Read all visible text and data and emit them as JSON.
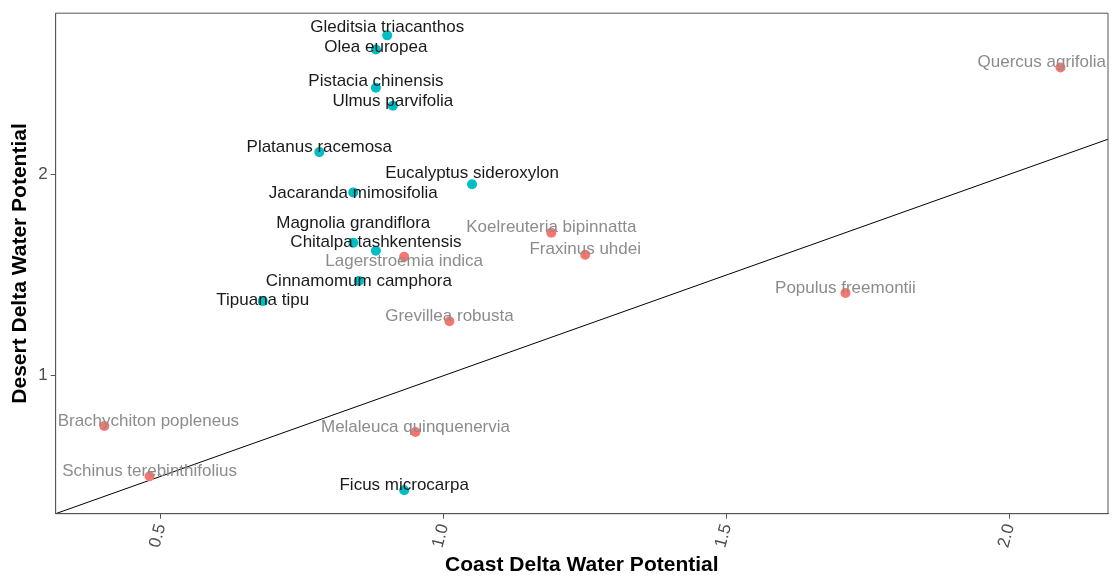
{
  "chart_data": {
    "type": "scatter",
    "xlabel": "Coast Delta Water Potential",
    "ylabel": "Desert Delta Water Potential",
    "xlim": [
      0.314,
      2.174
    ],
    "ylim": [
      0.314,
      2.8
    ],
    "xticks": [
      {
        "value": 0.5,
        "label": "0.5"
      },
      {
        "value": 1.0,
        "label": "1.0"
      },
      {
        "value": 1.5,
        "label": "1.5"
      },
      {
        "value": 2.0,
        "label": "2.0"
      }
    ],
    "yticks": [
      1,
      2
    ],
    "grid": false,
    "legend": false,
    "marker": "circle",
    "series": [
      {
        "color": "#00bfc4",
        "x": [
          0.9,
          0.88,
          0.88,
          0.91,
          0.78,
          0.84,
          1.05,
          0.84,
          0.88,
          0.85,
          0.68,
          0.93
        ],
        "values": [
          2.69,
          2.62,
          2.43,
          2.34,
          2.11,
          1.91,
          1.95,
          1.66,
          1.62,
          1.47,
          1.37,
          0.43
        ],
        "value_labels": [
          "Gleditsia triacanthos",
          "Olea europea",
          "Pistacia chinensis",
          "Ulmus parvifolia",
          "Platanus racemosa",
          "Jacaranda mimosifolia",
          "Eucalyptus sideroxylon",
          "Magnolia grandiflora",
          "Chitalpa tashkentensis",
          "Cinnamomum camphora",
          "Tipuana tipu",
          "Ficus microcarpa"
        ]
      },
      {
        "color": "#f8766d",
        "x": [
          2.09,
          1.19,
          1.25,
          0.93,
          1.71,
          1.01,
          0.4,
          0.95,
          0.48
        ],
        "values": [
          2.53,
          1.71,
          1.6,
          1.59,
          1.41,
          1.27,
          0.75,
          0.72,
          0.5
        ],
        "value_labels": [
          "Quercus agrifolia",
          "Koelreuteria bipinnatta",
          "Fraxinus uhdei",
          "Lagerstroemia indica",
          "Populus freemontii",
          "Grevillea robusta",
          "Brachychiton popleneus",
          "Melaleuca quinquenervia",
          "Schinus terebinthifolius"
        ]
      },
      {
        "type": "line",
        "color": "#000000",
        "marker": "none",
        "x": [
          0.314,
          2.174
        ],
        "values": [
          0.314,
          2.174
        ]
      }
    ]
  }
}
